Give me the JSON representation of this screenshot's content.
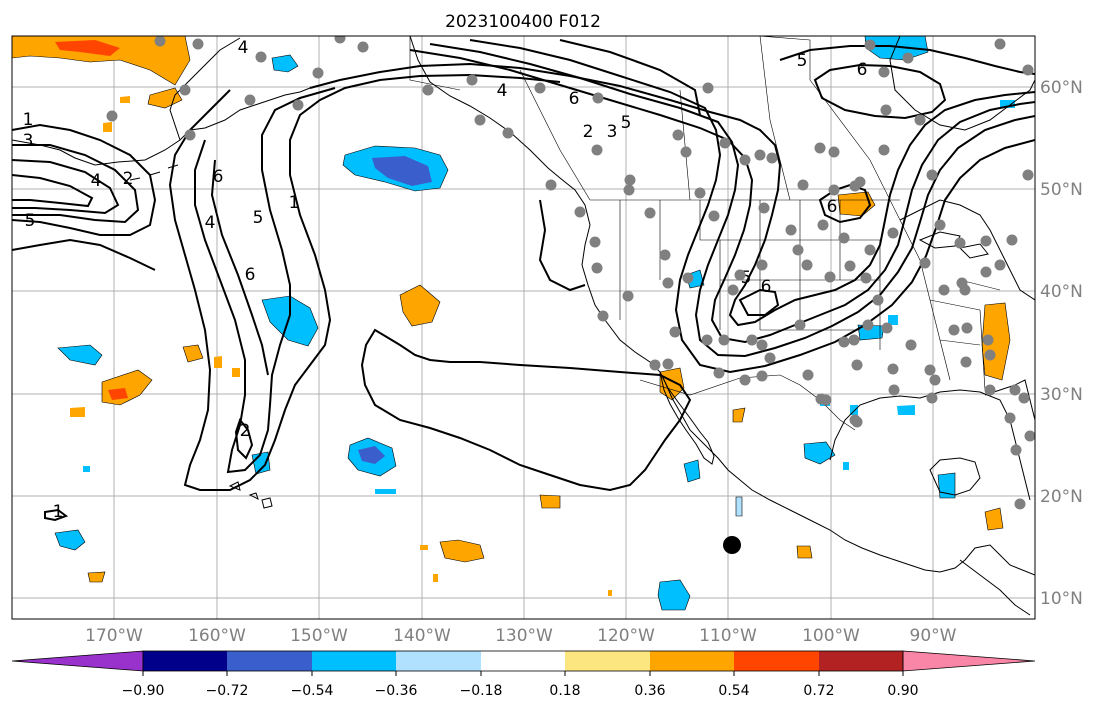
{
  "title": "2023100400 F012",
  "map": {
    "lon_ticks": [
      "170°W",
      "160°W",
      "150°W",
      "140°W",
      "130°W",
      "120°W",
      "110°W",
      "100°W",
      "90°W"
    ],
    "lat_ticks": [
      "60°N",
      "50°N",
      "40°N",
      "30°N",
      "20°N",
      "10°N"
    ],
    "lon_range": [
      -180,
      -80
    ],
    "lat_range": [
      8,
      65
    ],
    "grid": true,
    "projection": "PlateCarree"
  },
  "colorbar": {
    "orientation": "horizontal",
    "extend": "both",
    "tick_labels": [
      "−0.90",
      "−0.72",
      "−0.54",
      "−0.36",
      "−0.18",
      "0.18",
      "0.36",
      "0.54",
      "0.72",
      "0.90"
    ],
    "colors": [
      "#9932cc",
      "#00008b",
      "#3a5fcd",
      "#00bfff",
      "#b0e2ff",
      "#ffffff",
      "#fce680",
      "#ffa500",
      "#ff4500",
      "#b22222",
      "#f986a6"
    ]
  },
  "contour_labels": [
    "1",
    "2",
    "3",
    "4",
    "5",
    "6"
  ],
  "markers": {
    "station_color": "#808080",
    "highlight_color": "#000000"
  }
}
